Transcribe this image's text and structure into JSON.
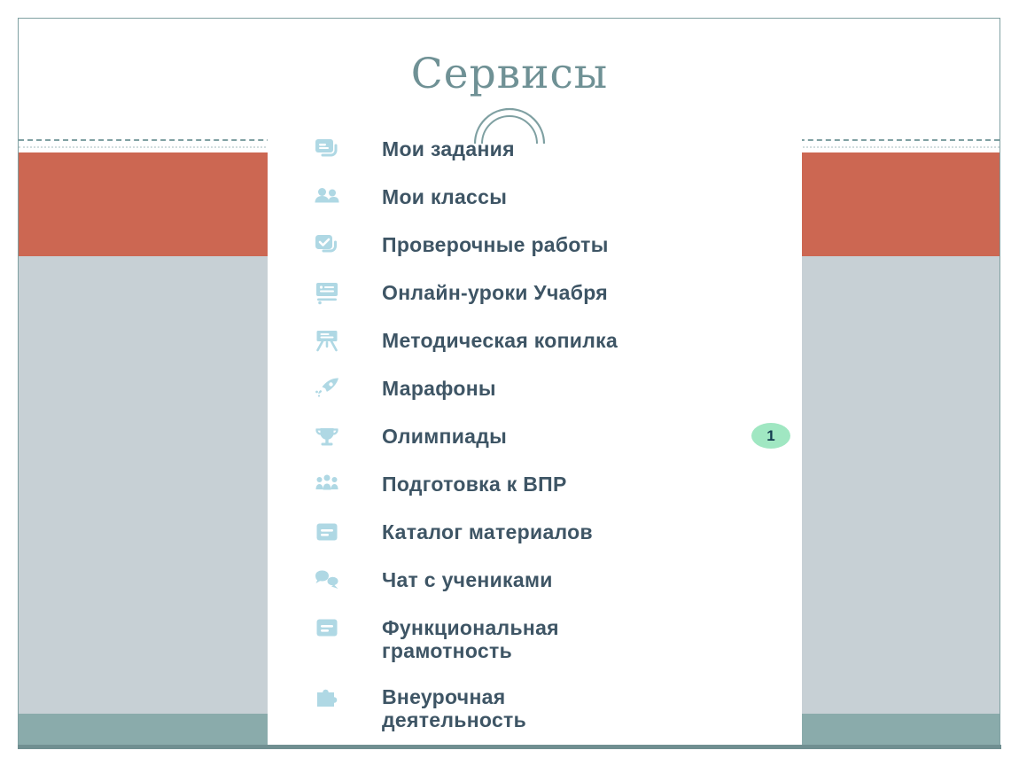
{
  "slide": {
    "title": "Сервисы",
    "menu": {
      "items": [
        {
          "label": "Мои задания",
          "icon": "tasks-icon"
        },
        {
          "label": "Мои классы",
          "icon": "classes-icon"
        },
        {
          "label": "Проверочные работы",
          "icon": "tests-icon"
        },
        {
          "label": "Онлайн-уроки Учабря",
          "icon": "online-lessons-icon"
        },
        {
          "label": "Методическая копилка",
          "icon": "methodics-board-icon"
        },
        {
          "label": "Марафоны",
          "icon": "rocket-icon"
        },
        {
          "label": "Олимпиады",
          "icon": "trophy-icon",
          "badge": "1"
        },
        {
          "label": "Подготовка к ВПР",
          "icon": "group-icon"
        },
        {
          "label": "Каталог материалов",
          "icon": "catalog-card-icon"
        },
        {
          "label": "Чат с учениками",
          "icon": "chat-icon"
        },
        {
          "label": "Функциональная грамотность",
          "icon": "literacy-card-icon"
        },
        {
          "label": "Внеурочная деятельность",
          "icon": "puzzle-icon"
        }
      ]
    },
    "colors": {
      "accent_orange": "#cc6752",
      "panel_gray": "#c7d0d5",
      "footer_teal": "#8aabab",
      "frame_border": "#7fa0a2",
      "bottom_line": "#708f91",
      "title_text": "#6f9195",
      "menu_text": "#3e5565",
      "icon_blue": "#afd8e4",
      "badge_green": "#a0e7c2",
      "badge_text": "#143c50"
    }
  }
}
